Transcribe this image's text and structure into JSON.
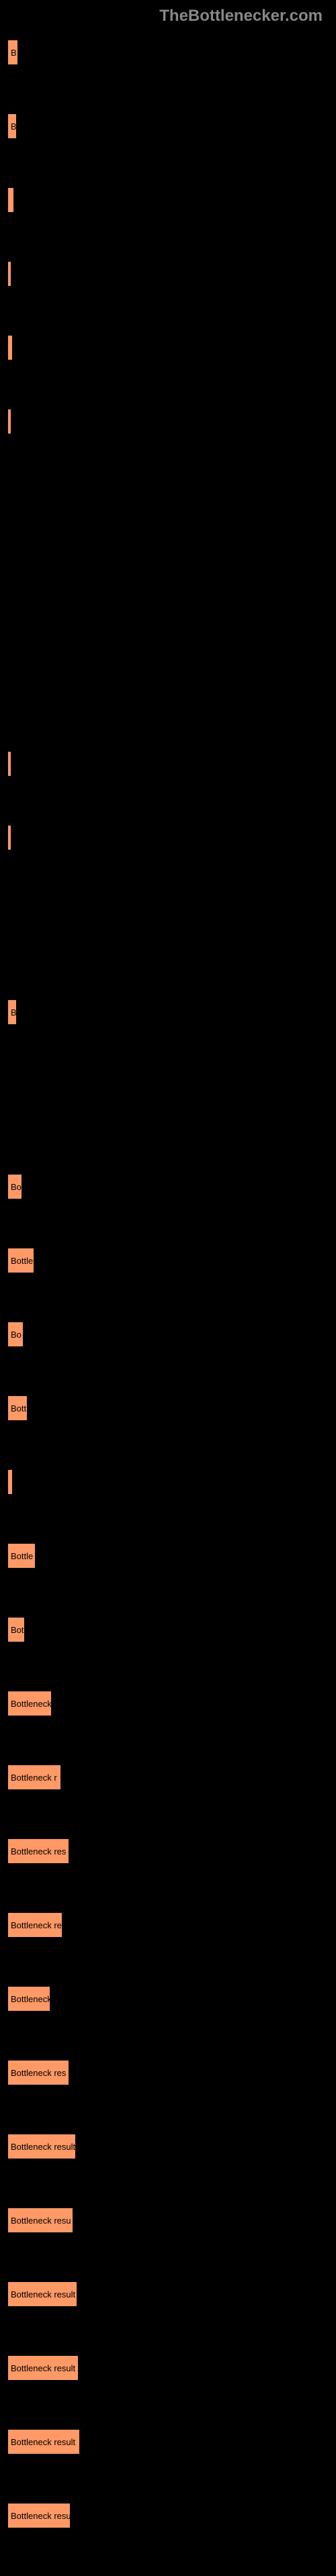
{
  "header": "TheBottlenecker.com",
  "bars": [
    {
      "width": 18,
      "label": "B"
    },
    {
      "width": 16,
      "label": "B"
    },
    {
      "width": 12,
      "label": ""
    },
    {
      "width": 8,
      "label": ""
    },
    {
      "width": 10,
      "label": ""
    },
    {
      "width": 6,
      "label": "",
      "spacer_after": "lg"
    },
    {
      "width": 8,
      "label": ""
    },
    {
      "width": 8,
      "label": "",
      "spacer_after": "sm"
    },
    {
      "width": 16,
      "label": "B",
      "spacer_after": "sm"
    },
    {
      "width": 24,
      "label": "Bo"
    },
    {
      "width": 42,
      "label": "Bottle"
    },
    {
      "width": 26,
      "label": "Bo"
    },
    {
      "width": 32,
      "label": "Bott"
    },
    {
      "width": 10,
      "label": ""
    },
    {
      "width": 44,
      "label": "Bottle"
    },
    {
      "width": 28,
      "label": "Bot"
    },
    {
      "width": 68,
      "label": "Bottleneck"
    },
    {
      "width": 82,
      "label": "Bottleneck r"
    },
    {
      "width": 94,
      "label": "Bottleneck res"
    },
    {
      "width": 84,
      "label": "Bottleneck re"
    },
    {
      "width": 66,
      "label": "Bottleneck"
    },
    {
      "width": 94,
      "label": "Bottleneck res"
    },
    {
      "width": 104,
      "label": "Bottleneck result"
    },
    {
      "width": 100,
      "label": "Bottleneck resu"
    },
    {
      "width": 106,
      "label": "Bottleneck result"
    },
    {
      "width": 108,
      "label": "Bottleneck result"
    },
    {
      "width": 110,
      "label": "Bottleneck result"
    },
    {
      "width": 96,
      "label": "Bottleneck resu"
    }
  ],
  "bar_color": "#ff9966",
  "background_color": "#000000"
}
